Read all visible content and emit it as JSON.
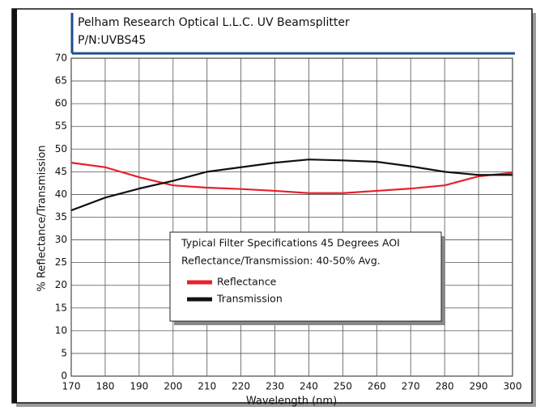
{
  "chart_data": {
    "type": "line",
    "title": "Pelham Research Optical L.L.C. UV Beamsplitter",
    "subtitle": "P/N:UVBS45",
    "x_label": "Wavelength (nm)",
    "y_label": "% Reflectance/Transmission",
    "annotation_title": "Typical Filter Specifications 45 Degrees AOI",
    "annotation_text": "Reflectance/Transmission: 40-50% Avg.",
    "x": [
      170,
      180,
      190,
      200,
      210,
      220,
      230,
      240,
      250,
      260,
      270,
      280,
      290,
      300
    ],
    "series": [
      {
        "name": "Reflectance",
        "color": "#e8202a",
        "values": [
          47,
          46,
          43.8,
          42,
          41.5,
          41.2,
          40.8,
          40.3,
          40.3,
          40.8,
          41.3,
          42,
          44,
          44.8
        ]
      },
      {
        "name": "Transmission",
        "color": "#111111",
        "values": [
          36.5,
          39.3,
          41.3,
          43,
          45,
          46,
          47,
          47.7,
          47.5,
          47.2,
          46.2,
          45,
          44.3,
          44.3
        ]
      }
    ],
    "xlim": [
      170,
      300
    ],
    "xticks": [
      170,
      180,
      190,
      200,
      210,
      220,
      230,
      240,
      250,
      260,
      270,
      280,
      290,
      300
    ],
    "ylim": [
      0,
      70
    ],
    "yticks": [
      0,
      5,
      10,
      15,
      20,
      25,
      30,
      35,
      40,
      45,
      50,
      55,
      60,
      65,
      70
    ],
    "grid": true
  }
}
